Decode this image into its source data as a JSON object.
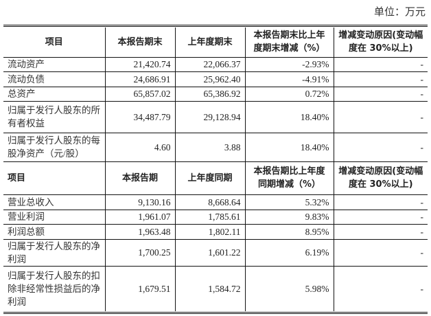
{
  "unit_label": "单位：万元",
  "section1": {
    "headers": [
      "项目",
      "本报告期末",
      "上年度期末",
      "本报告期末比上年度期末增减（%）",
      "增减变动原因(变动幅度在 30%以上)"
    ],
    "rows": [
      [
        "流动资产",
        "21,420.74",
        "22,066.37",
        "-2.93%",
        "-"
      ],
      [
        "流动负债",
        "24,686.91",
        "25,962.40",
        "-4.91%",
        "-"
      ],
      [
        "总资产",
        "65,857.02",
        "65,386.92",
        "0.72%",
        "-"
      ],
      [
        "归属于发行人股东的所有者权益",
        "34,487.79",
        "29,128.94",
        "18.40%",
        "-"
      ],
      [
        "归属于发行人股东的每股净资产（元/股）",
        "4.60",
        "3.88",
        "18.40%",
        "-"
      ]
    ]
  },
  "section2": {
    "headers": [
      "项目",
      "本报告期",
      "上年度同期",
      "本报告期比上年度同期增减（%）",
      "增减变动原因(变动幅度在 30%以上)"
    ],
    "rows": [
      [
        "营业总收入",
        "9,130.16",
        "8,668.64",
        "5.32%",
        "-"
      ],
      [
        "营业利润",
        "1,961.07",
        "1,785.61",
        "9.83%",
        "-"
      ],
      [
        "利润总额",
        "1,963.48",
        "1,802.11",
        "8.95%",
        "-"
      ],
      [
        "归属于发行人股东的净利润",
        "1,700.25",
        "1,601.22",
        "6.19%",
        "-"
      ],
      [
        "归属于发行人股东的扣除非经常性损益后的净利润",
        "1,679.51",
        "1,584.72",
        "5.98%",
        "-"
      ]
    ]
  }
}
